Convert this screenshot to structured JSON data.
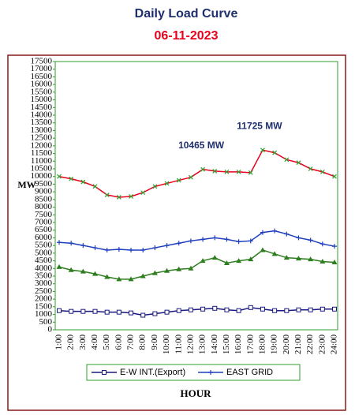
{
  "chart_data": {
    "type": "line",
    "title": "Daily Load Curve",
    "subtitle": "06-11-2023",
    "y_label": "MW",
    "x_label": "HOUR",
    "categories": [
      "1:00",
      "2:00",
      "3:00",
      "4:00",
      "5:00",
      "6:00",
      "7:00",
      "8:00",
      "9:00",
      "10:00",
      "11:00",
      "12:00",
      "13:00",
      "14:00",
      "15:00",
      "16:00",
      "17:00",
      "18:00",
      "19:00",
      "20:00",
      "21:00",
      "22:00",
      "23:00",
      "24:00"
    ],
    "series": [
      {
        "color": "#e8001c",
        "marker_color": "#2e9e2e",
        "marker": "x",
        "values": [
          10000,
          9850,
          9650,
          9350,
          8800,
          8650,
          8700,
          8950,
          9350,
          9550,
          9750,
          9950,
          10465,
          10350,
          10300,
          10300,
          10250,
          11725,
          11550,
          11100,
          10900,
          10500,
          10300,
          10000
        ]
      },
      {
        "name": "EAST GRID",
        "color": "#1f3fbf",
        "marker_color": "#1f3fbf",
        "marker": "plus",
        "values": [
          5700,
          5650,
          5500,
          5350,
          5200,
          5250,
          5200,
          5200,
          5350,
          5500,
          5650,
          5800,
          5900,
          6000,
          5900,
          5750,
          5800,
          6350,
          6450,
          6250,
          6000,
          5850,
          5600,
          5450
        ]
      },
      {
        "color": "#2e7d1e",
        "marker_color": "#2e7d1e",
        "marker": "triangle",
        "values": [
          4100,
          3900,
          3800,
          3650,
          3450,
          3300,
          3300,
          3500,
          3700,
          3850,
          3950,
          4000,
          4500,
          4700,
          4350,
          4500,
          4600,
          5200,
          4950,
          4700,
          4650,
          4600,
          4450,
          4400
        ]
      },
      {
        "name": "E-W INT.(Export)",
        "color": "#1a1a80",
        "marker_color": "#1a1a80",
        "marker": "square",
        "values": [
          1250,
          1200,
          1200,
          1200,
          1150,
          1150,
          1100,
          950,
          1050,
          1150,
          1250,
          1300,
          1350,
          1400,
          1300,
          1250,
          1450,
          1350,
          1250,
          1250,
          1300,
          1300,
          1350,
          1350
        ]
      }
    ],
    "annotations": [
      {
        "text": "10465 MW",
        "category": 12
      },
      {
        "text": "11725 MW",
        "category": 17
      }
    ],
    "ylim": [
      0,
      17500
    ],
    "yticks": [
      0,
      500,
      1000,
      1500,
      2000,
      2500,
      3000,
      3500,
      4000,
      4500,
      5000,
      5500,
      6000,
      6500,
      7000,
      7500,
      8000,
      8500,
      9000,
      9500,
      10000,
      10500,
      11000,
      11500,
      12000,
      12500,
      13000,
      13500,
      14000,
      14500,
      15000,
      15500,
      16000,
      16500,
      17000,
      17500
    ],
    "grid": false,
    "legend": "bottom"
  }
}
